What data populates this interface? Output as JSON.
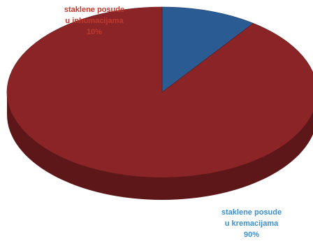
{
  "chart_data": {
    "type": "pie",
    "title": "",
    "start_angle_deg": -90,
    "slices": [
      {
        "label_lines": [
          "staklene posude",
          "u inhumacijama"
        ],
        "value": 10,
        "percent_label": "10%",
        "color": "#2b5b93",
        "side_color": "#1d3f68",
        "label_color": "#c0392b"
      },
      {
        "label_lines": [
          "staklene posude",
          "u kremacijama"
        ],
        "value": 90,
        "percent_label": "90%",
        "color": "#8b2426",
        "side_color": "#5e1718",
        "label_color": "#3a8fd0"
      }
    ],
    "legend": "none",
    "style": "3d-tilted"
  }
}
